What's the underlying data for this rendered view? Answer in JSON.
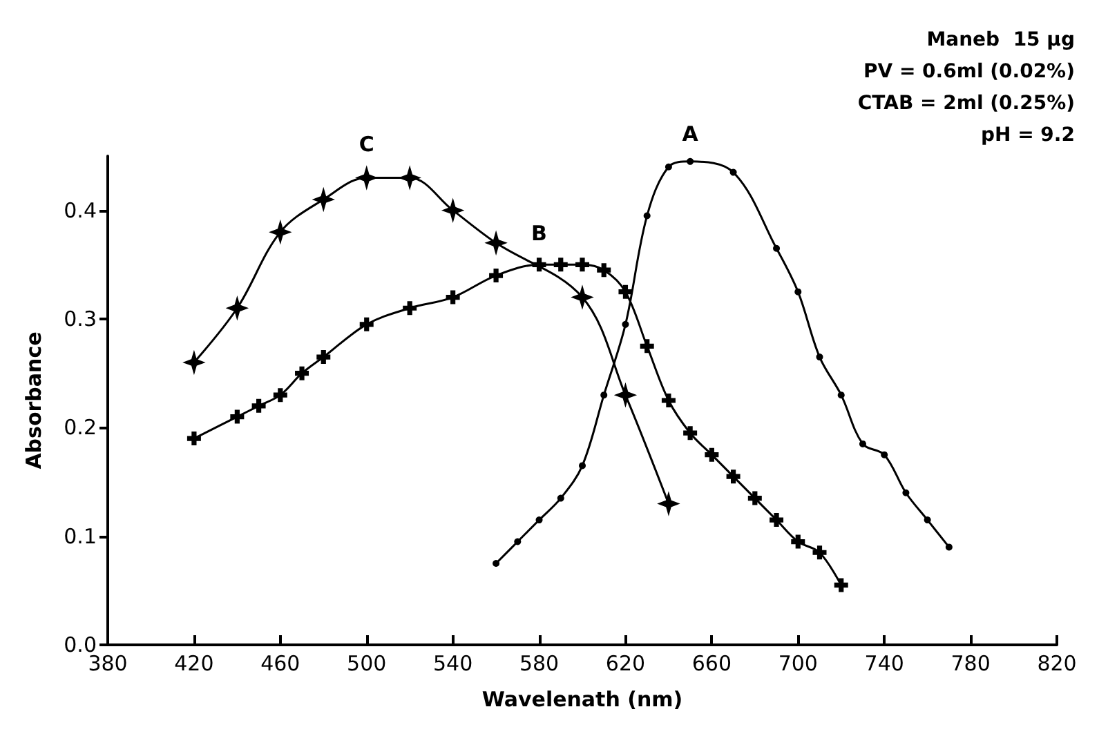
{
  "chart_data": {
    "type": "line",
    "xlabel": "Wavelenath (nm)",
    "ylabel": "Absorbance",
    "xlim": [
      380,
      820
    ],
    "xticks": [
      380,
      420,
      460,
      500,
      540,
      580,
      620,
      660,
      700,
      740,
      780,
      820
    ],
    "ylim": [
      0,
      0.45
    ],
    "yticks": [
      {
        "value": 0,
        "label": "0.0"
      },
      {
        "value": 0.1,
        "label": "0.1"
      },
      {
        "value": 0.2,
        "label": "0.2"
      },
      {
        "value": 0.3,
        "label": "0.3"
      },
      {
        "value": 0.4,
        "label": "0.4"
      }
    ],
    "grid": false,
    "legend": false,
    "line_style": "solid",
    "annotations": [
      "Maneb  15 μg",
      "PV = 0.6ml (0.02%)",
      "CTAB = 2ml (0.25%)",
      "pH = 9.2"
    ],
    "series": [
      {
        "name": "A",
        "color": "#000000",
        "marker": "circle",
        "x": [
          560,
          570,
          580,
          590,
          600,
          610,
          620,
          630,
          640,
          650,
          670,
          690,
          700,
          710,
          720,
          730,
          740,
          750,
          760,
          770
        ],
        "values": [
          0.075,
          0.095,
          0.115,
          0.135,
          0.165,
          0.23,
          0.295,
          0.395,
          0.44,
          0.445,
          0.435,
          0.365,
          0.325,
          0.265,
          0.23,
          0.185,
          0.175,
          0.14,
          0.115,
          0.09
        ]
      },
      {
        "name": "B",
        "color": "#000000",
        "marker": "cross",
        "x": [
          420,
          440,
          450,
          460,
          470,
          480,
          500,
          520,
          540,
          560,
          580,
          590,
          600,
          610,
          620,
          630,
          640,
          650,
          660,
          670,
          680,
          690,
          700,
          710,
          720
        ],
        "values": [
          0.19,
          0.21,
          0.22,
          0.23,
          0.25,
          0.265,
          0.295,
          0.31,
          0.32,
          0.34,
          0.35,
          0.35,
          0.35,
          0.345,
          0.325,
          0.275,
          0.225,
          0.195,
          0.175,
          0.155,
          0.135,
          0.115,
          0.095,
          0.085,
          0.055
        ]
      },
      {
        "name": "C",
        "color": "#000000",
        "marker": "star",
        "x": [
          420,
          440,
          460,
          480,
          500,
          520,
          540,
          560,
          600,
          620,
          640
        ],
        "values": [
          0.26,
          0.31,
          0.38,
          0.41,
          0.43,
          0.43,
          0.4,
          0.37,
          0.32,
          0.23,
          0.13
        ]
      }
    ]
  }
}
